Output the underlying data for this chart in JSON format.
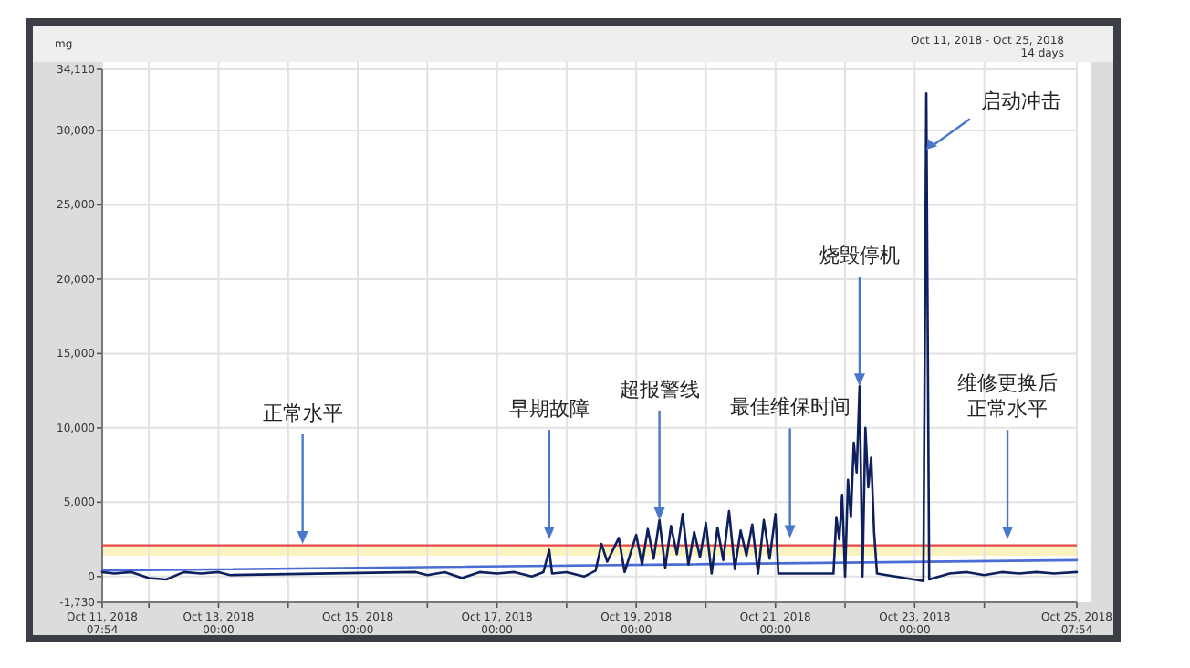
{
  "chart_data": {
    "type": "line",
    "subtitle": "Oct 11, 2018 - Oct 25, 2018",
    "ylabel": "mg",
    "xlim": [
      "2018-10-11T07:54",
      "2018-10-25T07:54"
    ],
    "xticks": [
      {
        "value": "2018-10-11T07:54",
        "label": "Oct 11, 2018\n07:54"
      },
      {
        "value": "2018-10-12T00:00",
        "label": null
      },
      {
        "value": "2018-10-13T00:00",
        "label": "Oct 13, 2018\n00:00"
      },
      {
        "value": "2018-10-14T00:00",
        "label": null
      },
      {
        "value": "2018-10-15T00:00",
        "label": "Oct 15, 2018\n00:00"
      },
      {
        "value": "2018-10-16T00:00",
        "label": null
      },
      {
        "value": "2018-10-17T00:00",
        "label": "Oct 17, 2018\n00:00"
      },
      {
        "value": "2018-10-18T00:00",
        "label": null
      },
      {
        "value": "2018-10-19T00:00",
        "label": "Oct 19, 2018\n00:00"
      },
      {
        "value": "2018-10-20T00:00",
        "label": null
      },
      {
        "value": "2018-10-21T00:00",
        "label": "Oct 21, 2018\n00:00"
      },
      {
        "value": "2018-10-22T00:00",
        "label": null
      },
      {
        "value": "2018-10-23T00:00",
        "label": "Oct 23, 2018\n00:00"
      },
      {
        "value": "2018-10-24T00:00",
        "label": null
      },
      {
        "value": "2018-10-25T07:54",
        "label": "Oct 25, 2018\n07:54"
      }
    ],
    "ylim": [
      -1730,
      34110
    ],
    "yticks": [
      {
        "value": -1730,
        "label": "-1,730"
      },
      {
        "value": 0,
        "label": "0"
      },
      {
        "value": 5000,
        "label": "5,000"
      },
      {
        "value": 10000,
        "label": "10,000"
      },
      {
        "value": 15000,
        "label": "15,000"
      },
      {
        "value": 20000,
        "label": "20,000"
      },
      {
        "value": 25000,
        "label": "25,000"
      },
      {
        "value": 30000,
        "label": "30,000"
      },
      {
        "value": 34110,
        "label": "34,110"
      }
    ],
    "grid": true,
    "marker": "none",
    "line_style": "solid",
    "ref_lines": [
      {
        "axis": "y",
        "value": 2100,
        "label": null,
        "color": "#e8474a"
      }
    ],
    "bands": [
      {
        "axis": "y",
        "from": 1400,
        "to": 2100,
        "label": null,
        "color": "#fbf3bf"
      }
    ],
    "series": [
      {
        "color": "#4a6cd4",
        "x": [
          "2018-10-11T07:54",
          "2018-10-25T07:54"
        ],
        "values": [
          400,
          1100
        ]
      },
      {
        "color": "#0d1f5c",
        "x": [
          "2018-10-11T07:54",
          "2018-10-11T12:00",
          "2018-10-11T18:00",
          "2018-10-12T00:00",
          "2018-10-12T06:00",
          "2018-10-12T12:00",
          "2018-10-12T18:00",
          "2018-10-13T00:00",
          "2018-10-13T04:00",
          "2018-10-15T20:00",
          "2018-10-16T00:00",
          "2018-10-16T06:00",
          "2018-10-16T12:00",
          "2018-10-16T18:00",
          "2018-10-17T00:00",
          "2018-10-17T06:00",
          "2018-10-17T12:00",
          "2018-10-17T16:00",
          "2018-10-17T18:00",
          "2018-10-17T19:00",
          "2018-10-18T00:00",
          "2018-10-18T06:00",
          "2018-10-18T10:00",
          "2018-10-18T12:00",
          "2018-10-18T14:00",
          "2018-10-18T18:00",
          "2018-10-18T20:00",
          "2018-10-19T00:00",
          "2018-10-19T02:00",
          "2018-10-19T04:00",
          "2018-10-19T06:00",
          "2018-10-19T08:00",
          "2018-10-19T10:00",
          "2018-10-19T12:00",
          "2018-10-19T14:00",
          "2018-10-19T16:00",
          "2018-10-19T18:00",
          "2018-10-19T20:00",
          "2018-10-19T22:00",
          "2018-10-20T00:00",
          "2018-10-20T02:00",
          "2018-10-20T04:00",
          "2018-10-20T06:00",
          "2018-10-20T08:00",
          "2018-10-20T10:00",
          "2018-10-20T12:00",
          "2018-10-20T14:00",
          "2018-10-20T16:00",
          "2018-10-20T18:00",
          "2018-10-20T20:00",
          "2018-10-20T22:00",
          "2018-10-21T00:00",
          "2018-10-21T01:00",
          "2018-10-21T20:00",
          "2018-10-21T21:00",
          "2018-10-21T22:00",
          "2018-10-21T23:00",
          "2018-10-22T00:00",
          "2018-10-22T01:00",
          "2018-10-22T02:00",
          "2018-10-22T03:00",
          "2018-10-22T04:00",
          "2018-10-22T05:00",
          "2018-10-22T06:00",
          "2018-10-22T07:00",
          "2018-10-22T08:00",
          "2018-10-22T09:00",
          "2018-10-22T10:00",
          "2018-10-22T11:00",
          "2018-10-23T03:00",
          "2018-10-23T04:00",
          "2018-10-23T05:00",
          "2018-10-23T12:00",
          "2018-10-23T18:00",
          "2018-10-24T00:00",
          "2018-10-24T06:00",
          "2018-10-24T12:00",
          "2018-10-24T18:00",
          "2018-10-25T00:00",
          "2018-10-25T07:54"
        ],
        "values": [
          300,
          200,
          300,
          -100,
          -200,
          300,
          200,
          300,
          100,
          300,
          100,
          300,
          -100,
          300,
          200,
          300,
          0,
          300,
          1800,
          200,
          300,
          0,
          400,
          2200,
          1000,
          2600,
          300,
          2800,
          800,
          3200,
          1200,
          3800,
          600,
          3400,
          1500,
          4200,
          800,
          3000,
          1300,
          3600,
          200,
          3300,
          1100,
          4400,
          500,
          3100,
          1400,
          3500,
          200,
          3800,
          1200,
          4200,
          200,
          200,
          4000,
          2500,
          5500,
          0,
          6500,
          4000,
          9000,
          7000,
          12800,
          0,
          10000,
          6000,
          8000,
          3000,
          200,
          -300,
          32500,
          -200,
          200,
          300,
          100,
          300,
          200,
          300,
          200,
          300
        ]
      }
    ],
    "annotations": [
      "14 days",
      {
        "text": "正常水平",
        "x": "2018-10-14T05:00",
        "y": 2200
      },
      {
        "text": "早期故障",
        "x": "2018-10-17T18:00",
        "y": 2500
      },
      {
        "text": "超报警线",
        "x": "2018-10-19T08:00",
        "y": 3800
      },
      {
        "text": "最佳维保时间",
        "x": "2018-10-21T05:00",
        "y": 2600
      },
      {
        "text": "烧毁停机",
        "x": "2018-10-22T05:00",
        "y": 12800
      },
      {
        "text": "启动冲击",
        "x": "2018-10-23T04:00",
        "y": 28700
      },
      {
        "text": "维修更换后正常水平",
        "x": "2018-10-24T08:00",
        "y": 2500
      }
    ]
  }
}
